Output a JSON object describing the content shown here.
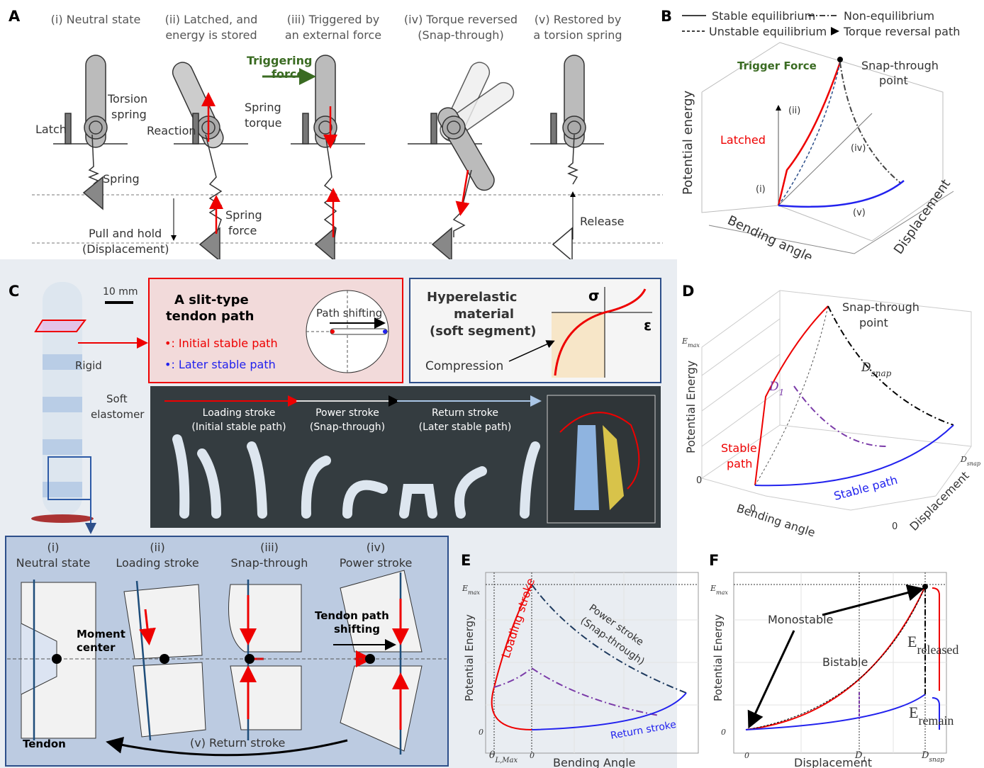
{
  "panel_a": {
    "label": "A",
    "states": [
      [
        "(i) Neutral state"
      ],
      [
        "(ii) Latched, and",
        "energy is stored"
      ],
      [
        "(iii) Triggered by",
        "an external force"
      ],
      [
        "(iv) Torque reversed",
        "(Snap-through)"
      ],
      [
        "(v) Restored by",
        "a torsion spring"
      ]
    ],
    "torsion_spring": [
      "Torsion",
      "spring"
    ],
    "latch": "Latch",
    "spring": "Spring",
    "pull_hold": [
      "Pull and hold",
      "(Displacement)"
    ],
    "reaction": "Reaction",
    "spring_torque": [
      "Spring",
      "torque"
    ],
    "spring_force": [
      "Spring",
      "force"
    ],
    "triggering_force": [
      "Triggering",
      "force"
    ],
    "release": "Release"
  },
  "panel_b": {
    "label": "B",
    "legend": [
      "Stable equilibrium",
      "Non-equilibrium",
      "Unstable equilibrium",
      "Torque reversal path"
    ],
    "trigger_force": "Trigger Force",
    "snap_point": [
      "Snap-through",
      "point"
    ],
    "latched": "Latched",
    "stages": [
      "(i)",
      "(ii)",
      "(iv)",
      "(v)"
    ],
    "z_label": "Potential energy",
    "x_label": "Bending angle",
    "y_label": "Displacement"
  },
  "panel_c": {
    "label": "C",
    "scale": "10 mm",
    "rigid": "Rigid",
    "soft": [
      "Soft",
      "elastomer"
    ],
    "slit_title": [
      "A slit-type",
      "tendon path"
    ],
    "initial": "•: Initial stable path",
    "later": "•: Later stable path",
    "path_shifting": "Path shifting",
    "hyper_title": [
      "Hyperelastic",
      "material",
      "(soft segment)"
    ],
    "sigma": "σ",
    "epsilon": "ε",
    "compression": "Compression",
    "strokes": [
      [
        "Loading stroke",
        "(Initial stable path)"
      ],
      [
        "Power stroke",
        "(Snap-through)"
      ],
      [
        "Return stroke",
        "(Later stable path)"
      ]
    ],
    "phases": [
      [
        "(i)",
        "Neutral state"
      ],
      [
        "(ii)",
        "Loading stroke"
      ],
      [
        "(iii)",
        "Snap-through"
      ],
      [
        "(iv)",
        "Power stroke"
      ]
    ],
    "moment_center": [
      "Moment",
      "center"
    ],
    "tendon_shift": [
      "Tendon path",
      "shifting"
    ],
    "tendon": "Tendon",
    "return_stroke": "(v) Return stroke"
  },
  "panel_d": {
    "label": "D",
    "snap_point": [
      "Snap-through",
      "point"
    ],
    "e_max": {
      "base": "E",
      "sub": "max"
    },
    "d_snap": {
      "base": "D",
      "sub": "snap"
    },
    "d_1": {
      "base": "D",
      "sub": "1"
    },
    "stable_left": [
      "Stable",
      "path"
    ],
    "stable_right": "Stable path",
    "zeros": [
      "0",
      "0",
      "0"
    ],
    "z_label": "Potential Energy",
    "x_label": "Bending angle",
    "y_label": "Displacement"
  },
  "panel_e": {
    "label": "E",
    "e_max": {
      "base": "E",
      "sub": "max"
    },
    "y_zero": "0",
    "theta": {
      "base": "θ",
      "sub": "L,Max"
    },
    "x_zero": "0",
    "y_label": "Potential Energy",
    "x_label": "Bending Angle",
    "loading": "Loading stroke",
    "power": [
      "Power stroke",
      "(Snap-through)"
    ],
    "return": "Return stroke"
  },
  "panel_f": {
    "label": "F",
    "e_max": {
      "base": "E",
      "sub": "max"
    },
    "y_zero": "0",
    "x_zero": "0",
    "d_1": {
      "base": "D",
      "sub": "1"
    },
    "d_snap": {
      "base": "D",
      "sub": "snap"
    },
    "y_label": "Potential Energy",
    "x_label": "Displacement",
    "monostable": "Monostable",
    "bistable": "Bistable",
    "e_released": {
      "base": "E",
      "sub": "released"
    },
    "e_remain": {
      "base": "E",
      "sub": "remain"
    }
  }
}
